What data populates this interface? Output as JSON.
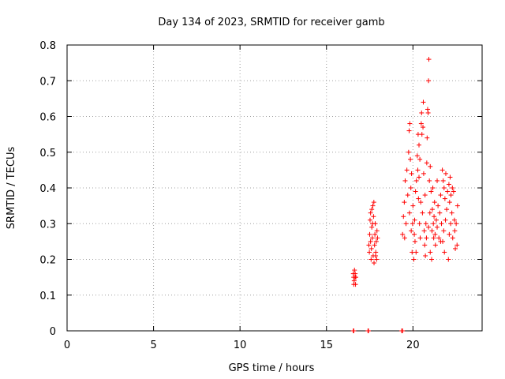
{
  "chart_data": {
    "type": "scatter",
    "title": "Day 134 of 2023, SRMTID for receiver gamb",
    "xlabel": "GPS time / hours",
    "ylabel": "SRMTID / TECUs",
    "xlim": [
      0,
      24
    ],
    "ylim": [
      0,
      0.8
    ],
    "xticks": [
      0,
      5,
      10,
      15,
      20
    ],
    "xtick_labels": [
      "0",
      "5",
      "10",
      "15",
      "20"
    ],
    "yticks": [
      0,
      0.1,
      0.2,
      0.3,
      0.4,
      0.5,
      0.6,
      0.7,
      0.8
    ],
    "ytick_labels": [
      "0",
      "0.1",
      "0.2",
      "0.3",
      "0.4",
      "0.5",
      "0.6",
      "0.7",
      "0.8"
    ],
    "grid": true,
    "marker": "+",
    "color": "#ff0000",
    "series": [
      {
        "name": "SRMTID",
        "points": [
          [
            16.55,
            0.0
          ],
          [
            16.58,
            0.0
          ],
          [
            17.4,
            0.0
          ],
          [
            17.43,
            0.0
          ],
          [
            19.35,
            0.0
          ],
          [
            19.4,
            0.0
          ],
          [
            16.55,
            0.16
          ],
          [
            16.57,
            0.15
          ],
          [
            16.6,
            0.14
          ],
          [
            16.62,
            0.17
          ],
          [
            16.65,
            0.15
          ],
          [
            16.68,
            0.13
          ],
          [
            16.7,
            0.15
          ],
          [
            16.58,
            0.13
          ],
          [
            16.66,
            0.16
          ],
          [
            17.45,
            0.24
          ],
          [
            17.48,
            0.22
          ],
          [
            17.5,
            0.27
          ],
          [
            17.52,
            0.31
          ],
          [
            17.55,
            0.33
          ],
          [
            17.58,
            0.2
          ],
          [
            17.6,
            0.23
          ],
          [
            17.62,
            0.29
          ],
          [
            17.65,
            0.26
          ],
          [
            17.68,
            0.35
          ],
          [
            17.7,
            0.21
          ],
          [
            17.72,
            0.32
          ],
          [
            17.75,
            0.19
          ],
          [
            17.78,
            0.24
          ],
          [
            17.8,
            0.27
          ],
          [
            17.82,
            0.3
          ],
          [
            17.85,
            0.22
          ],
          [
            17.88,
            0.25
          ],
          [
            17.9,
            0.2
          ],
          [
            17.92,
            0.28
          ],
          [
            17.95,
            0.26
          ],
          [
            17.55,
            0.25
          ],
          [
            17.66,
            0.3
          ],
          [
            17.74,
            0.36
          ],
          [
            17.84,
            0.21
          ],
          [
            17.62,
            0.34
          ],
          [
            19.4,
            0.27
          ],
          [
            19.45,
            0.32
          ],
          [
            19.5,
            0.36
          ],
          [
            19.52,
            0.26
          ],
          [
            19.55,
            0.42
          ],
          [
            19.6,
            0.3
          ],
          [
            19.65,
            0.45
          ],
          [
            19.7,
            0.38
          ],
          [
            19.75,
            0.5
          ],
          [
            19.78,
            0.56
          ],
          [
            19.8,
            0.33
          ],
          [
            19.82,
            0.58
          ],
          [
            19.85,
            0.48
          ],
          [
            19.88,
            0.4
          ],
          [
            19.9,
            0.28
          ],
          [
            19.92,
            0.44
          ],
          [
            19.95,
            0.22
          ],
          [
            20.0,
            0.35
          ],
          [
            20.05,
            0.2
          ],
          [
            20.08,
            0.27
          ],
          [
            20.1,
            0.31
          ],
          [
            20.12,
            0.25
          ],
          [
            20.15,
            0.39
          ],
          [
            20.18,
            0.22
          ],
          [
            20.2,
            0.42
          ],
          [
            20.25,
            0.49
          ],
          [
            20.28,
            0.45
          ],
          [
            20.3,
            0.55
          ],
          [
            20.32,
            0.37
          ],
          [
            20.35,
            0.52
          ],
          [
            20.38,
            0.3
          ],
          [
            20.4,
            0.48
          ],
          [
            20.42,
            0.26
          ],
          [
            20.45,
            0.36
          ],
          [
            20.48,
            0.58
          ],
          [
            20.5,
            0.61
          ],
          [
            20.52,
            0.55
          ],
          [
            20.55,
            0.33
          ],
          [
            20.58,
            0.57
          ],
          [
            20.6,
            0.64
          ],
          [
            20.62,
            0.44
          ],
          [
            20.65,
            0.28
          ],
          [
            20.68,
            0.24
          ],
          [
            20.7,
            0.38
          ],
          [
            20.72,
            0.21
          ],
          [
            20.75,
            0.3
          ],
          [
            20.78,
            0.26
          ],
          [
            20.8,
            0.47
          ],
          [
            20.82,
            0.54
          ],
          [
            20.85,
            0.62
          ],
          [
            20.88,
            0.61
          ],
          [
            20.9,
            0.7
          ],
          [
            20.92,
            0.76
          ],
          [
            20.95,
            0.42
          ],
          [
            20.98,
            0.33
          ],
          [
            21.0,
            0.22
          ],
          [
            21.05,
            0.39
          ],
          [
            21.08,
            0.2
          ],
          [
            21.1,
            0.28
          ],
          [
            21.12,
            0.34
          ],
          [
            21.15,
            0.4
          ],
          [
            21.18,
            0.3
          ],
          [
            21.2,
            0.26
          ],
          [
            21.22,
            0.32
          ],
          [
            21.25,
            0.36
          ],
          [
            21.28,
            0.27
          ],
          [
            21.3,
            0.24
          ],
          [
            21.35,
            0.31
          ],
          [
            21.4,
            0.29
          ],
          [
            21.45,
            0.35
          ],
          [
            21.5,
            0.26
          ],
          [
            21.55,
            0.33
          ],
          [
            21.6,
            0.38
          ],
          [
            21.65,
            0.3
          ],
          [
            21.7,
            0.45
          ],
          [
            21.72,
            0.25
          ],
          [
            21.75,
            0.42
          ],
          [
            21.78,
            0.28
          ],
          [
            21.8,
            0.4
          ],
          [
            21.82,
            0.22
          ],
          [
            21.85,
            0.37
          ],
          [
            21.88,
            0.31
          ],
          [
            21.9,
            0.44
          ],
          [
            21.95,
            0.34
          ],
          [
            22.0,
            0.39
          ],
          [
            22.05,
            0.2
          ],
          [
            22.08,
            0.41
          ],
          [
            22.1,
            0.27
          ],
          [
            22.12,
            0.36
          ],
          [
            22.15,
            0.43
          ],
          [
            22.18,
            0.3
          ],
          [
            22.2,
            0.38
          ],
          [
            22.25,
            0.33
          ],
          [
            22.28,
            0.4
          ],
          [
            22.3,
            0.26
          ],
          [
            22.35,
            0.39
          ],
          [
            22.4,
            0.31
          ],
          [
            22.42,
            0.28
          ],
          [
            22.45,
            0.23
          ],
          [
            22.5,
            0.3
          ],
          [
            22.55,
            0.24
          ],
          [
            22.58,
            0.35
          ],
          [
            21.4,
            0.42
          ],
          [
            21.0,
            0.46
          ],
          [
            20.35,
            0.43
          ],
          [
            19.98,
            0.3
          ],
          [
            20.9,
            0.29
          ],
          [
            21.6,
            0.25
          ]
        ]
      }
    ]
  }
}
